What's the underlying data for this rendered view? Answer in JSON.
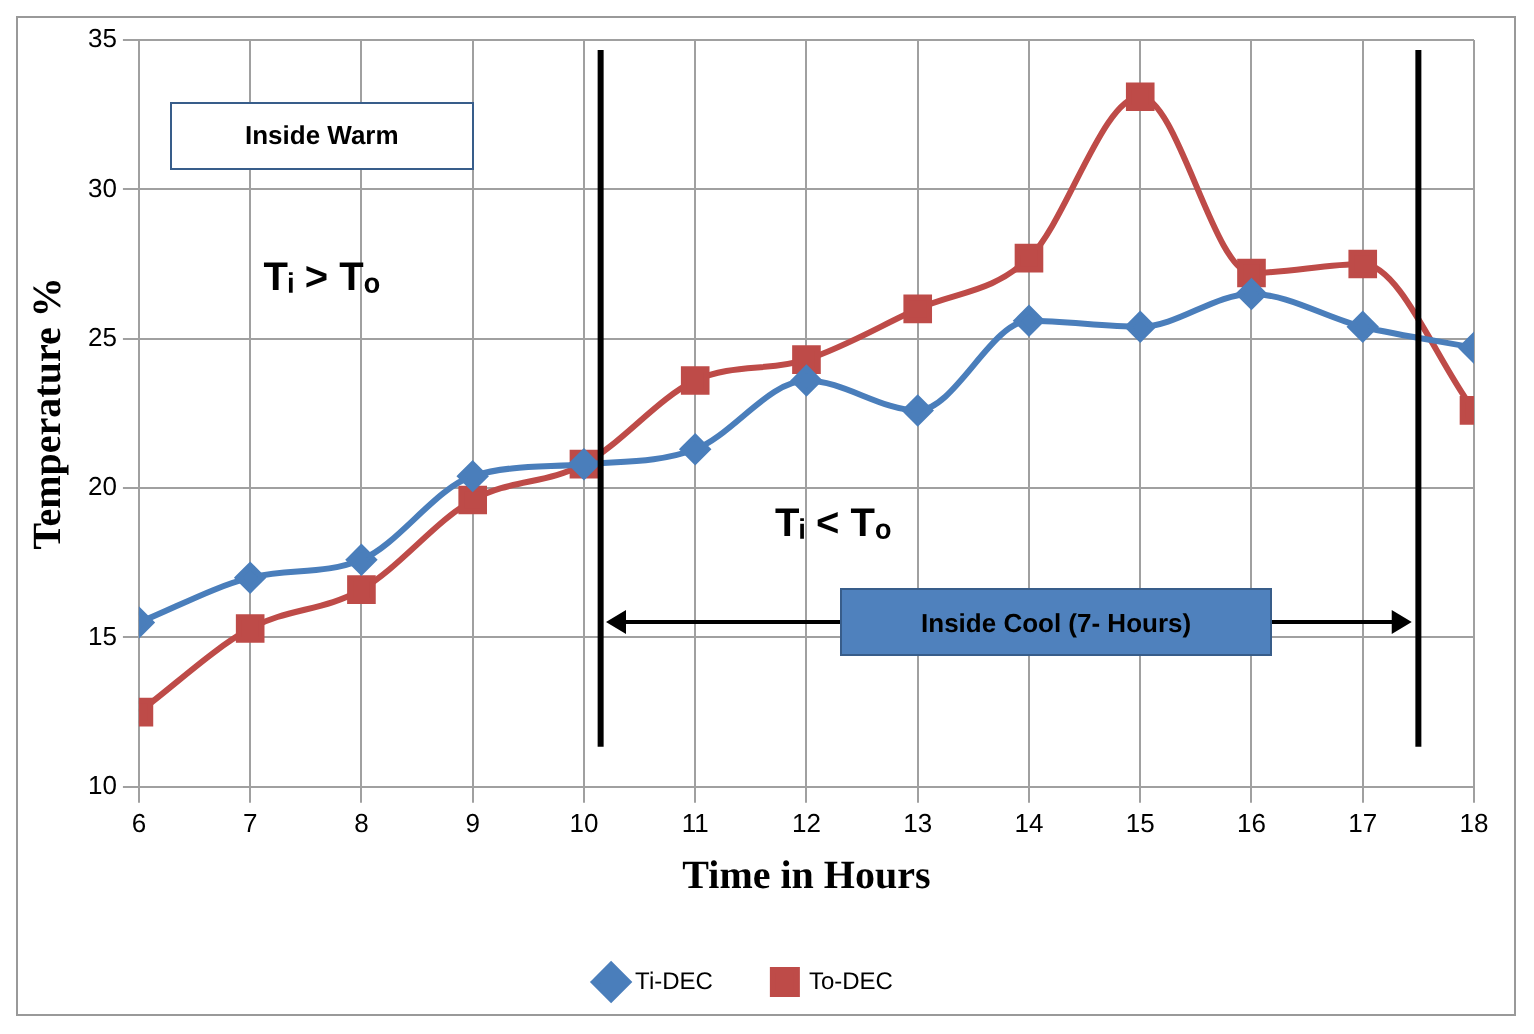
{
  "chart_data": {
    "type": "line",
    "xlabel": "Time in Hours",
    "ylabel": "Temperature %",
    "x": [
      6,
      7,
      8,
      9,
      10,
      11,
      12,
      13,
      14,
      15,
      16,
      17,
      18
    ],
    "series": [
      {
        "name": "Ti-DEC",
        "color": "#4a7ebb",
        "marker": "diamond",
        "values": [
          15.5,
          17.0,
          17.6,
          20.4,
          20.8,
          21.3,
          23.6,
          22.6,
          25.6,
          25.4,
          26.5,
          25.4,
          24.7
        ]
      },
      {
        "name": "To-DEC",
        "color": "#be4b48",
        "marker": "square",
        "values": [
          12.5,
          15.3,
          16.6,
          19.6,
          20.8,
          23.6,
          24.3,
          26.0,
          27.7,
          33.1,
          27.2,
          27.5,
          22.6
        ]
      }
    ],
    "xlim": [
      6,
      18
    ],
    "xticks": [
      6,
      7,
      8,
      9,
      10,
      11,
      12,
      13,
      14,
      15,
      16,
      17,
      18
    ],
    "ylim": [
      10,
      35
    ],
    "yticks": [
      10,
      15,
      20,
      25,
      30,
      35
    ],
    "grid": true,
    "legend": "bottom",
    "ref_lines": [
      {
        "axis": "x",
        "value": 10.15,
        "color": "#000000"
      },
      {
        "axis": "x",
        "value": 17.5,
        "color": "#000000"
      }
    ],
    "annotations": [
      "Inside Warm",
      "Tᵢ > Tₒ",
      "Tᵢ < Tₒ",
      "Inside Cool (7- Hours)"
    ]
  }
}
